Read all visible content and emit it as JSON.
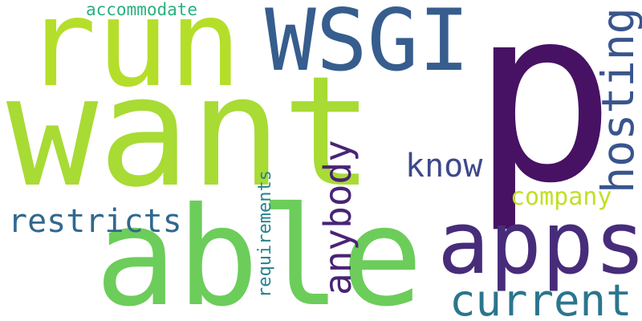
{
  "words": [
    {
      "text": "p",
      "color": "#471164"
    },
    {
      "text": "want",
      "color": "#a8db34"
    },
    {
      "text": "run",
      "color": "#b5de2b"
    },
    {
      "text": "able",
      "color": "#6ccd5a"
    },
    {
      "text": "WSGI",
      "color": "#365d8d"
    },
    {
      "text": "apps",
      "color": "#472c7a"
    },
    {
      "text": "hosting",
      "color": "#39558c"
    },
    {
      "text": "current",
      "color": "#2b758e"
    },
    {
      "text": "anybody",
      "color": "#482475"
    },
    {
      "text": "restricts",
      "color": "#31688e"
    },
    {
      "text": "know",
      "color": "#3e4989"
    },
    {
      "text": "company",
      "color": "#c2df23"
    },
    {
      "text": "requirements",
      "color": "#26828e"
    },
    {
      "text": "accommodate",
      "color": "#2ab07f"
    }
  ]
}
